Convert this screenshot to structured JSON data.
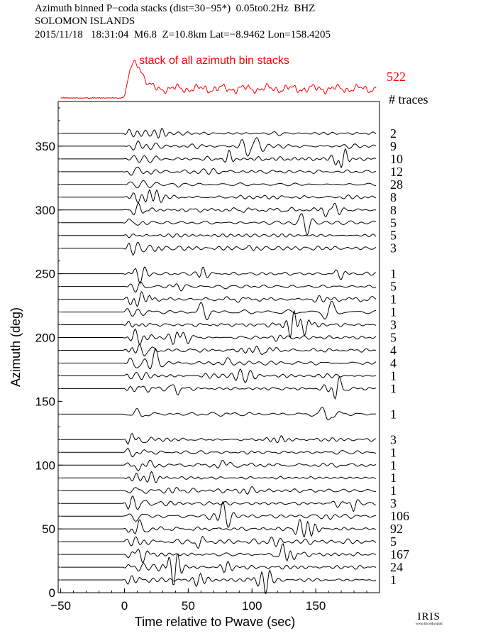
{
  "header": {
    "line1": "Azimuth binned P−coda stacks (dist=30−95*)  0.05to0.2Hz  BHZ",
    "line2": "SOLOMON ISLANDS",
    "line3": "2015/11/18   18:31:04  M6.8  Z=10.8km Lat=−8.9462 Lon=158.4205"
  },
  "chart_data": {
    "type": "line",
    "title": "Azimuth binned P−coda stacks (dist=30−95*)  0.05to0.2Hz  BHZ",
    "xlabel": "Time relative to Pwave (sec)",
    "ylabel": "Azimuth (deg)",
    "xlim": [
      -52,
      200
    ],
    "ylim": [
      0,
      385
    ],
    "x_ticks": [
      -50,
      0,
      50,
      100,
      150
    ],
    "y_ticks": [
      0,
      50,
      100,
      150,
      200,
      250,
      300,
      350
    ],
    "grid": false,
    "summary_trace": {
      "label": "stack of all azimuth bin stacks",
      "count": "522",
      "color": "#ff0000"
    },
    "count_header": "# traces",
    "traces": [
      {
        "azimuth": 10,
        "count": "1"
      },
      {
        "azimuth": 20,
        "count": "24"
      },
      {
        "azimuth": 30,
        "count": "167"
      },
      {
        "azimuth": 40,
        "count": "5"
      },
      {
        "azimuth": 50,
        "count": "92"
      },
      {
        "azimuth": 60,
        "count": "106"
      },
      {
        "azimuth": 70,
        "count": "3"
      },
      {
        "azimuth": 80,
        "count": "1"
      },
      {
        "azimuth": 90,
        "count": "1"
      },
      {
        "azimuth": 100,
        "count": "1"
      },
      {
        "azimuth": 110,
        "count": "1"
      },
      {
        "azimuth": 120,
        "count": "3"
      },
      {
        "azimuth": 140,
        "count": "1"
      },
      {
        "azimuth": 160,
        "count": "1"
      },
      {
        "azimuth": 170,
        "count": "1"
      },
      {
        "azimuth": 180,
        "count": "4"
      },
      {
        "azimuth": 190,
        "count": "4"
      },
      {
        "azimuth": 200,
        "count": "5"
      },
      {
        "azimuth": 210,
        "count": "3"
      },
      {
        "azimuth": 220,
        "count": "1"
      },
      {
        "azimuth": 230,
        "count": "1"
      },
      {
        "azimuth": 240,
        "count": "5"
      },
      {
        "azimuth": 250,
        "count": "1"
      },
      {
        "azimuth": 270,
        "count": "3"
      },
      {
        "azimuth": 280,
        "count": "5"
      },
      {
        "azimuth": 290,
        "count": "5"
      },
      {
        "azimuth": 300,
        "count": "8"
      },
      {
        "azimuth": 310,
        "count": "8"
      },
      {
        "azimuth": 320,
        "count": "28"
      },
      {
        "azimuth": 330,
        "count": "12"
      },
      {
        "azimuth": 340,
        "count": "10"
      },
      {
        "azimuth": 350,
        "count": "9"
      },
      {
        "azimuth": 360,
        "count": "2"
      }
    ]
  },
  "logo": {
    "text": "IRIS",
    "url_text": "www.iris.edu/spud"
  }
}
